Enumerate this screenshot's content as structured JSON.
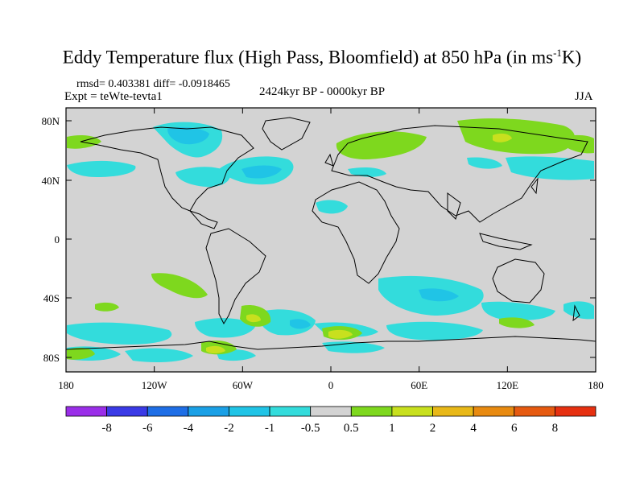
{
  "header": {
    "title_main": "Eddy Temperature flux (High Pass, Bloomfield) at 850 hPa (in ms",
    "title_sup": "-1",
    "title_end": "K)",
    "stats": "rmsd= 0.403381 diff= -0.0918465",
    "experiment": "Expt = teWte-tevta1",
    "period": "2424kyr BP - 0000kyr BP",
    "season": "JJA"
  },
  "map": {
    "lat_ticks": [
      "80N",
      "40N",
      "0",
      "40S",
      "80S"
    ],
    "lon_ticks": [
      "180",
      "120W",
      "60W",
      "0",
      "60E",
      "120E",
      "180"
    ],
    "background_color": "#d3d3d3"
  },
  "colorbar": {
    "labels": [
      "-8",
      "-6",
      "-4",
      "-2",
      "-1",
      "-0.5",
      "0.5",
      "1",
      "2",
      "4",
      "6",
      "8"
    ],
    "colors": [
      "#9a2ee8",
      "#3a3ae6",
      "#1e6ee6",
      "#1aa0e6",
      "#20c4e6",
      "#33dcdc",
      "#d3d3d3",
      "#7ed81e",
      "#c8e01e",
      "#e8b818",
      "#e88a10",
      "#e65a10",
      "#e63010"
    ]
  }
}
